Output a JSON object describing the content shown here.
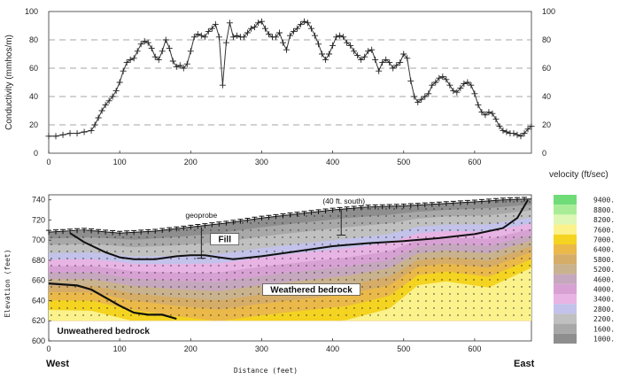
{
  "chart_data": [
    {
      "type": "line",
      "ylabel": "Conductivity (mmhos/m)",
      "xlim": [
        0,
        680
      ],
      "ylim": [
        0,
        100
      ],
      "x_ticks": [
        "0",
        "100",
        "200",
        "300",
        "400",
        "500",
        "600"
      ],
      "y_ticks": [
        "0",
        "20",
        "40",
        "60",
        "80",
        "100"
      ],
      "grid": "dashed horizontal",
      "series": [
        {
          "marker": "plus",
          "x": [
            0,
            10,
            20,
            30,
            40,
            50,
            60,
            65,
            70,
            75,
            80,
            85,
            90,
            95,
            100,
            105,
            110,
            115,
            120,
            125,
            130,
            135,
            140,
            145,
            150,
            155,
            160,
            165,
            170,
            175,
            180,
            185,
            190,
            195,
            200,
            205,
            210,
            215,
            220,
            225,
            230,
            235,
            240,
            245,
            250,
            255,
            260,
            265,
            270,
            275,
            280,
            285,
            290,
            295,
            300,
            305,
            310,
            315,
            320,
            325,
            330,
            335,
            340,
            345,
            350,
            355,
            360,
            365,
            370,
            375,
            380,
            385,
            390,
            395,
            400,
            405,
            410,
            415,
            420,
            425,
            430,
            435,
            440,
            445,
            450,
            455,
            460,
            465,
            470,
            475,
            480,
            485,
            490,
            495,
            500,
            505,
            510,
            515,
            520,
            525,
            530,
            535,
            540,
            545,
            550,
            555,
            560,
            565,
            570,
            575,
            580,
            585,
            590,
            595,
            600,
            605,
            610,
            615,
            620,
            625,
            630,
            635,
            640,
            645,
            650,
            655,
            660,
            665,
            670,
            675,
            680
          ],
          "y": [
            12,
            12,
            13,
            14,
            14,
            15,
            16,
            20,
            25,
            30,
            34,
            37,
            40,
            44,
            50,
            58,
            64,
            66,
            67,
            72,
            77,
            79,
            78,
            74,
            68,
            66,
            72,
            80,
            74,
            65,
            61,
            62,
            60,
            63,
            72,
            82,
            84,
            83,
            82,
            86,
            88,
            91,
            82,
            48,
            78,
            92,
            82,
            83,
            82,
            82,
            85,
            88,
            89,
            92,
            93,
            88,
            84,
            82,
            82,
            85,
            78,
            73,
            83,
            86,
            88,
            91,
            93,
            92,
            88,
            83,
            77,
            70,
            66,
            70,
            76,
            82,
            83,
            82,
            78,
            76,
            72,
            69,
            66,
            68,
            72,
            73,
            66,
            58,
            64,
            66,
            64,
            60,
            62,
            64,
            70,
            67,
            51,
            40,
            36,
            38,
            40,
            42,
            48,
            50,
            53,
            54,
            52,
            48,
            44,
            43,
            46,
            49,
            50,
            48,
            42,
            34,
            29,
            27,
            29,
            28,
            24,
            19,
            16,
            15,
            14,
            14,
            13,
            12,
            14,
            17,
            19
          ]
        }
      ]
    },
    {
      "type": "heatmap",
      "ylabel": "Elevation (feet)",
      "xlabel": "Distance (feet)",
      "xlim": [
        0,
        680
      ],
      "ylim": [
        600,
        745
      ],
      "x_ticks": [
        "0",
        "100",
        "200",
        "300",
        "400",
        "500",
        "600"
      ],
      "y_ticks": [
        "600",
        "620",
        "640",
        "660",
        "680",
        "700",
        "720",
        "740"
      ],
      "left_label": "West",
      "right_label": "East",
      "legend": {
        "title": "velocity (ft/sec)",
        "placement": "right",
        "levels": [
          "9400.",
          "8800.",
          "8200.",
          "7600.",
          "7000.",
          "6400.",
          "5800.",
          "5200.",
          "4600.",
          "4000.",
          "3400.",
          "2800.",
          "2200.",
          "1600.",
          "1000."
        ],
        "colors": [
          "#6fdc78",
          "#a9ec98",
          "#def7b4",
          "#fbf28c",
          "#f4d420",
          "#eab94a",
          "#d6ad68",
          "#c9b28e",
          "#c5a8bd",
          "#d7a2d3",
          "#e8b4e4",
          "#c2c2ea",
          "#c0c0c0",
          "#a8a8a8",
          "#8e8e8e"
        ]
      },
      "annotations": [
        "geoprobe",
        "(40 ft. south)",
        "Fill",
        "Weathered bedrock",
        "Unweathered bedrock"
      ],
      "surface": {
        "x": [
          0,
          50,
          100,
          150,
          200,
          250,
          300,
          350,
          400,
          450,
          500,
          550,
          600,
          640,
          680
        ],
        "elevation": [
          708,
          710,
          707,
          709,
          713,
          717,
          722,
          726,
          730,
          733,
          734,
          736,
          738,
          740,
          741
        ]
      },
      "fill_boundary": {
        "x": [
          30,
          50,
          80,
          100,
          120,
          150,
          180,
          200,
          220,
          240,
          260,
          300,
          350,
          400,
          450,
          500,
          550,
          600,
          640,
          660,
          675
        ],
        "elevation": [
          707,
          698,
          688,
          683,
          681,
          681,
          684,
          685,
          685,
          683,
          681,
          684,
          689,
          694,
          697,
          699,
          702,
          706,
          712,
          722,
          740
        ]
      },
      "bedrock_boundary": {
        "x": [
          0,
          40,
          60,
          80,
          100,
          120,
          140,
          160,
          180
        ],
        "elevation": [
          657,
          655,
          651,
          643,
          635,
          628,
          626,
          626,
          622
        ]
      },
      "geoprobe_x": 215,
      "geoprobe_range": [
        682,
        713
      ],
      "south_probe_x": 412,
      "south_probe_range": [
        705,
        730
      ]
    }
  ]
}
